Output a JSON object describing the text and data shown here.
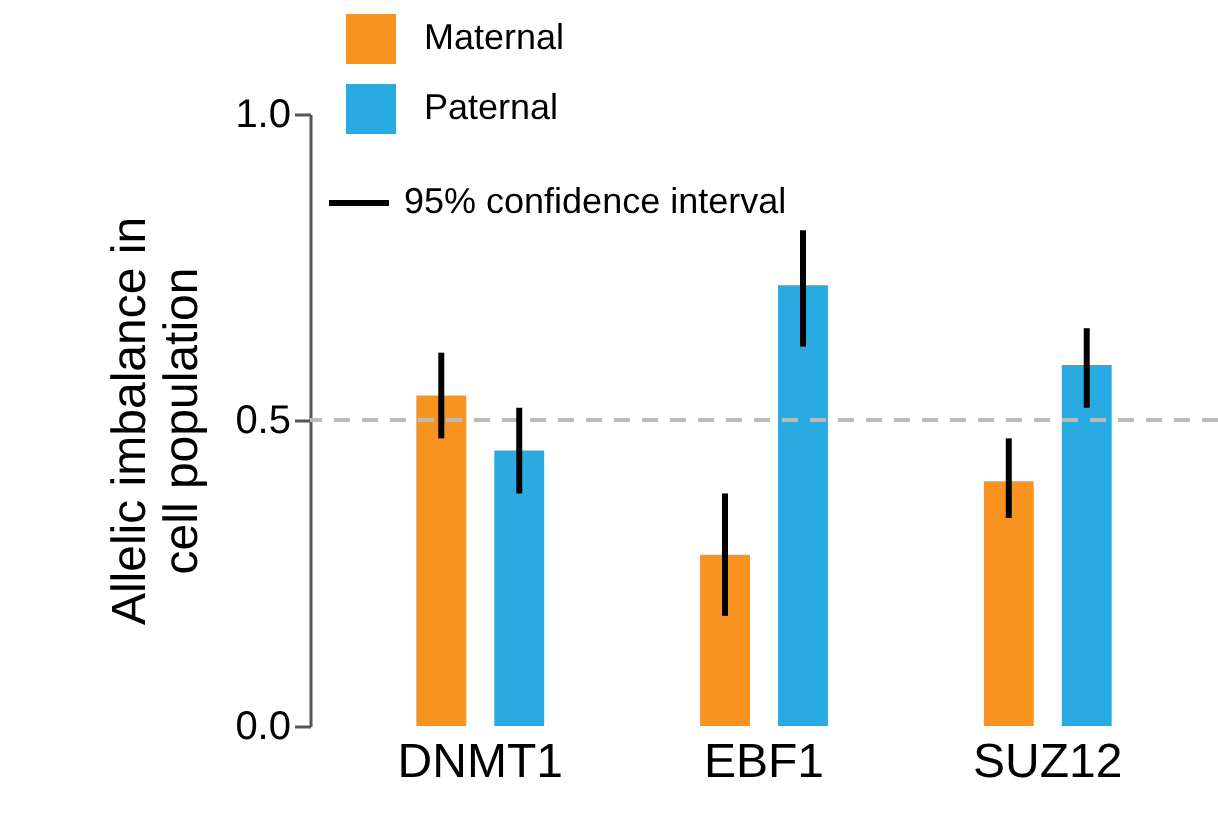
{
  "chart_data": {
    "type": "bar",
    "ylabel": "Allelic imbalance in\ncell population",
    "categories": [
      "DNMT1",
      "EBF1",
      "SUZ12"
    ],
    "series": [
      {
        "name": "Maternal",
        "color": "#f7931e",
        "values": [
          0.54,
          0.28,
          0.4
        ],
        "errors": [
          [
            0.47,
            0.61
          ],
          [
            0.18,
            0.38
          ],
          [
            0.34,
            0.47
          ]
        ]
      },
      {
        "name": "Paternal",
        "color": "#29abe2",
        "values": [
          0.45,
          0.72,
          0.59
        ],
        "errors": [
          [
            0.38,
            0.52
          ],
          [
            0.62,
            0.81
          ],
          [
            0.52,
            0.65
          ]
        ]
      }
    ],
    "ylim": [
      0,
      1
    ],
    "yticks": [
      {
        "value": 0,
        "label": "0.0"
      },
      {
        "value": 0.5,
        "label": "0.5"
      },
      {
        "value": 1,
        "label": "1.0"
      }
    ],
    "ref_lines": [
      {
        "axis": "y",
        "value": 0.5,
        "color": "#bbbbbb",
        "line_style": "dashed"
      }
    ],
    "annotations": [
      "95% confidence interval"
    ],
    "legend": "top left",
    "grid": false
  }
}
